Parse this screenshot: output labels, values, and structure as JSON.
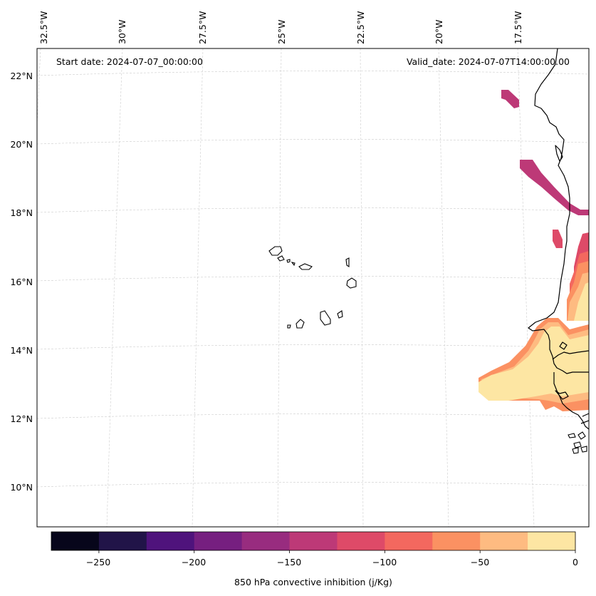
{
  "map": {
    "start_label": "Start date: 2024-07-07_00:00:00",
    "valid_label": "Valid_date: 2024-07-07T14:00:00.00",
    "lon_labels": [
      "32.5°W",
      "30°W",
      "27.5°W",
      "25°W",
      "22.5°W",
      "20°W",
      "17.5°W"
    ],
    "lat_labels": [
      "22°N",
      "20°N",
      "18°N",
      "16°N",
      "14°N",
      "12°N",
      "10°N"
    ],
    "gridlines": true
  },
  "colorbar": {
    "title": "850 hPa convective inhibition (j/Kg)",
    "tick_labels": [
      "−250",
      "−200",
      "−150",
      "−100",
      "−50",
      "0"
    ],
    "min": -275,
    "max": 0,
    "step": 25,
    "colors": [
      "#07061b",
      "#211448",
      "#4f137c",
      "#761f80",
      "#982c7f",
      "#bd3977",
      "#de4a68",
      "#f3685f",
      "#fb9162",
      "#febb81",
      "#fde6a3"
    ]
  },
  "chart_data": {
    "type": "heatmap",
    "variable": "850 hPa convective inhibition",
    "units": "j/Kg",
    "levels": [
      -275,
      -250,
      -225,
      -200,
      -175,
      -150,
      -125,
      -100,
      -75,
      -50,
      -25,
      0
    ],
    "lon_ticks": [
      -32.5,
      -30,
      -27.5,
      -25,
      -22.5,
      -20,
      -17.5
    ],
    "lat_ticks": [
      22,
      20,
      18,
      16,
      14,
      12,
      10
    ],
    "start_date": "2024-07-07_00:00:00",
    "valid_date": "2024-07-07T14:00:00.00"
  }
}
